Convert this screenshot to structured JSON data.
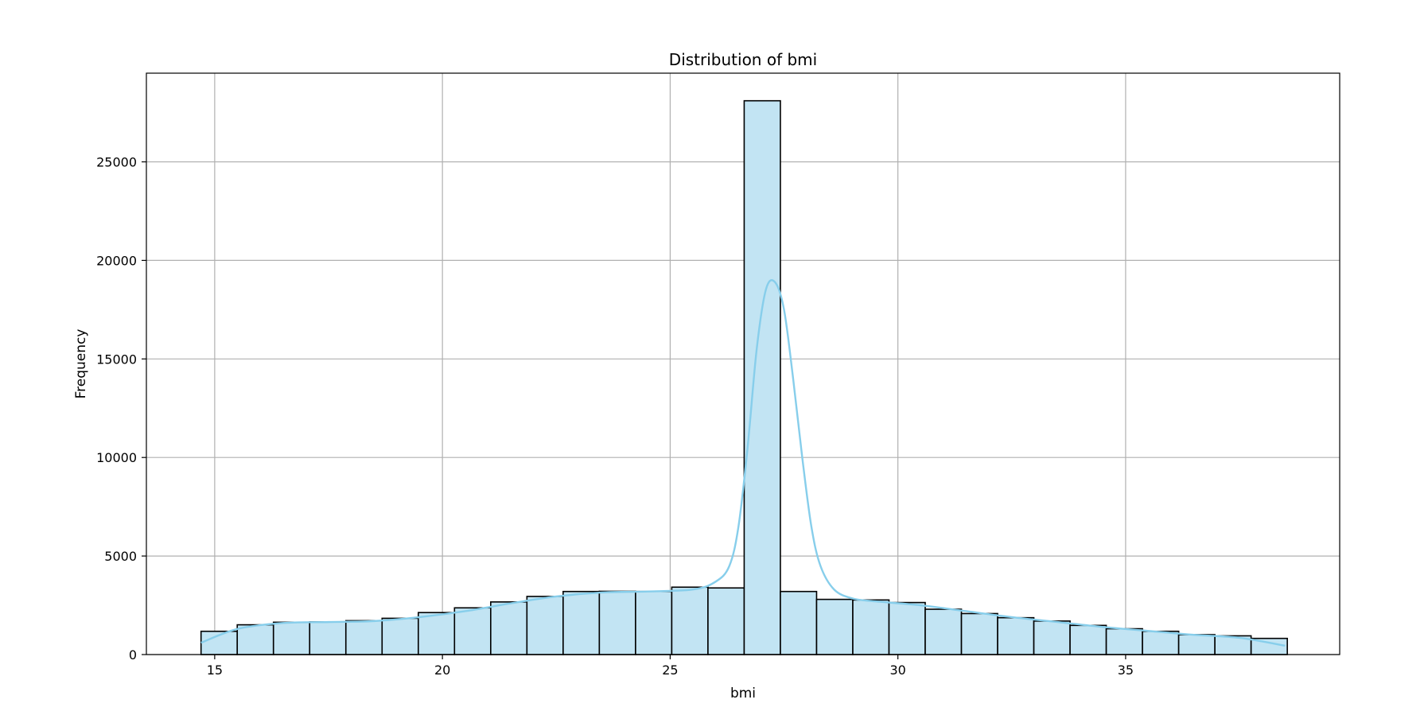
{
  "chart_data": {
    "type": "bar",
    "subtype": "histogram",
    "title": "Distribution of bmi",
    "xlabel": "bmi",
    "ylabel": "Frequency",
    "xlim": [
      13.5,
      39.7
    ],
    "ylim": [
      0,
      29500
    ],
    "xticks": [
      15,
      20,
      25,
      30,
      35
    ],
    "yticks": [
      0,
      5000,
      10000,
      15000,
      20000,
      25000
    ],
    "grid": true,
    "bin_start": 14.7,
    "bin_width": 0.795,
    "values": [
      1180,
      1510,
      1640,
      1660,
      1720,
      1840,
      2130,
      2370,
      2670,
      2950,
      3200,
      3210,
      3200,
      3420,
      3380,
      28100,
      3200,
      2800,
      2770,
      2640,
      2300,
      2080,
      1870,
      1700,
      1480,
      1310,
      1180,
      1010,
      950,
      820
    ],
    "kde": {
      "x": [
        14.7,
        15.5,
        16.5,
        17.5,
        18.5,
        19.5,
        20.5,
        21.5,
        22.5,
        23.5,
        24.5,
        25.5,
        26.0,
        26.3,
        26.5,
        26.7,
        26.9,
        27.1,
        27.3,
        27.5,
        27.7,
        27.9,
        28.1,
        28.3,
        28.6,
        29.0,
        29.5,
        30.5,
        31.5,
        32.5,
        33.5,
        34.5,
        35.5,
        36.5,
        37.5,
        38.5
      ],
      "y": [
        600,
        1300,
        1600,
        1650,
        1700,
        1900,
        2200,
        2600,
        2950,
        3150,
        3200,
        3300,
        3700,
        4500,
        6500,
        10500,
        15500,
        18500,
        18900,
        17500,
        14000,
        10000,
        6500,
        4500,
        3300,
        2850,
        2700,
        2500,
        2200,
        1900,
        1650,
        1400,
        1200,
        1000,
        850,
        450
      ]
    },
    "colors": {
      "bar_fill": "#c2e4f3",
      "bar_edge": "#000000",
      "kde_line": "#87ceeb",
      "grid": "#b0b0b0"
    }
  }
}
